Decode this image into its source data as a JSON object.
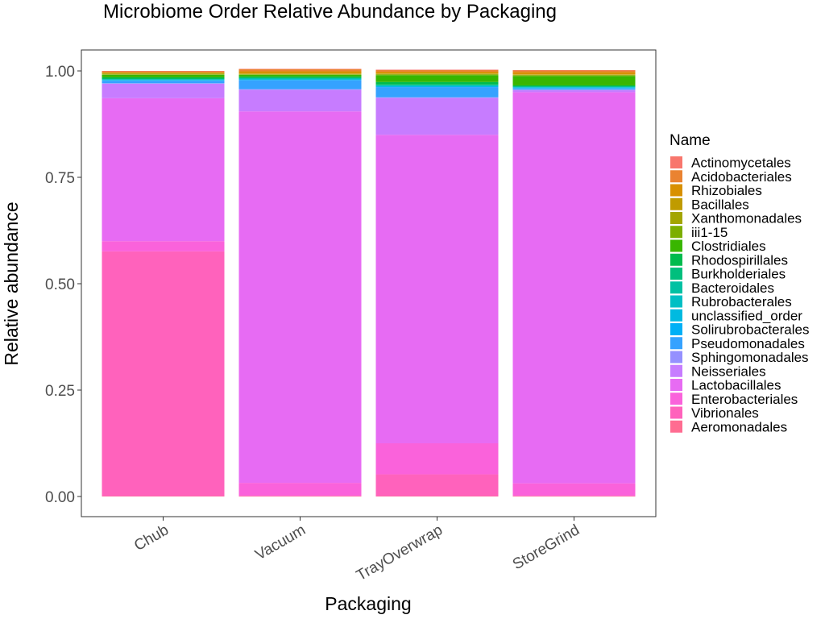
{
  "chart_data": {
    "type": "bar",
    "stacked": true,
    "title": "Microbiome Order Relative Abundance by Packaging",
    "xlabel": "Packaging",
    "ylabel": "Relative abundance",
    "ylim": [
      0,
      1.05
    ],
    "yticks": [
      "0.00",
      "0.25",
      "0.50",
      "0.75",
      "1.00"
    ],
    "ytick_values": [
      0,
      0.25,
      0.5,
      0.75,
      1.0
    ],
    "categories": [
      "Chub",
      "Vacuum",
      "TrayOverwrap",
      "StoreGrind"
    ],
    "grid": false,
    "legend_title": "Name",
    "legend_position": "right",
    "series": [
      {
        "name": "Actinomycetales",
        "color": "#F8766D",
        "values": [
          0.001,
          0.001,
          0.001,
          0.001
        ]
      },
      {
        "name": "Acidobacteriales",
        "color": "#EA8331",
        "values": [
          0.002,
          0.005,
          0.004,
          0.004
        ]
      },
      {
        "name": "Rhizobiales",
        "color": "#D89000",
        "values": [
          0.002,
          0.005,
          0.004,
          0.005
        ]
      },
      {
        "name": "Bacillales",
        "color": "#C09B00",
        "values": [
          0.001,
          0.001,
          0.001,
          0.001
        ]
      },
      {
        "name": "Xanthomonadales",
        "color": "#A3A500",
        "values": [
          0.002,
          0.001,
          0.001,
          0.001
        ]
      },
      {
        "name": "iii1-15",
        "color": "#7CAE00",
        "values": [
          0.001,
          0.001,
          0.002,
          0.002
        ]
      },
      {
        "name": "Clostridiales",
        "color": "#39B600",
        "values": [
          0.006,
          0.004,
          0.016,
          0.022
        ]
      },
      {
        "name": "Rhodospirillales",
        "color": "#00BB4E",
        "values": [
          0.003,
          0.003,
          0.006,
          0.002
        ]
      },
      {
        "name": "Burkholderiales",
        "color": "#00BF7D",
        "values": [
          0.001,
          0.001,
          0.001,
          0.001
        ]
      },
      {
        "name": "Bacteroidales",
        "color": "#00C1A3",
        "values": [
          0.001,
          0.001,
          0.001,
          0.001
        ]
      },
      {
        "name": "Rubrobacterales",
        "color": "#00BFC4",
        "values": [
          0.001,
          0.002,
          0.002,
          0.001
        ]
      },
      {
        "name": "unclassified_order",
        "color": "#00BAE0",
        "values": [
          0.001,
          0.001,
          0.001,
          0.001
        ]
      },
      {
        "name": "Solirubrobacterales",
        "color": "#00B0F6",
        "values": [
          0.001,
          0.001,
          0.001,
          0.001
        ]
      },
      {
        "name": "Pseudomonadales",
        "color": "#35A2FF",
        "values": [
          0.006,
          0.021,
          0.024,
          0.003
        ]
      },
      {
        "name": "Sphingomonadales",
        "color": "#9590FF",
        "values": [
          0.001,
          0.001,
          0.001,
          0.001
        ]
      },
      {
        "name": "Neisseriales",
        "color": "#C77CFF",
        "values": [
          0.034,
          0.051,
          0.087,
          0.005
        ]
      },
      {
        "name": "Lactobacillales",
        "color": "#E76BF3",
        "values": [
          0.336,
          0.873,
          0.725,
          0.919
        ]
      },
      {
        "name": "Enterobacteriales",
        "color": "#FA62DB",
        "values": [
          0.024,
          0.03,
          0.073,
          0.029
        ]
      },
      {
        "name": "Vibrionales",
        "color": "#FF62BC",
        "values": [
          0.575,
          0.001,
          0.051,
          0.001
        ]
      },
      {
        "name": "Aeromonadales",
        "color": "#FF6C91",
        "values": [
          0.001,
          0.001,
          0.001,
          0.001
        ]
      }
    ]
  }
}
